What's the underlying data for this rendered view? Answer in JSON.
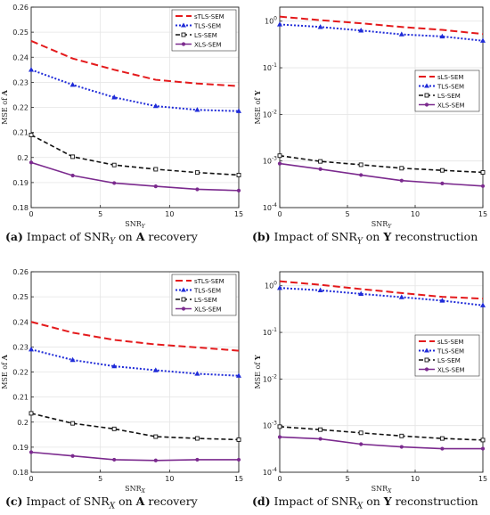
{
  "colors": {
    "sTLS-SEM": "#e41a1c",
    "TLS-SEM": "#1f2bd8",
    "LS-SEM": "#111111",
    "XLS-SEM": "#7b2a8e"
  },
  "captions": [
    {
      "label": "(a)",
      "text": "Impact of SNR",
      "sub": "Y",
      "rest": " on ",
      "bold": "A",
      "tail": " recovery"
    },
    {
      "label": "(b)",
      "text": "Impact of SNR",
      "sub": "Y",
      "rest": " on ",
      "bold": "Y",
      "tail": " reconstruction"
    },
    {
      "label": "(c)",
      "text": "Impact of SNR",
      "sub": "X",
      "rest": " on ",
      "bold": "A",
      "tail": " recovery"
    },
    {
      "label": "(d)",
      "text": "Impact of SNR",
      "sub": "X",
      "rest": " on ",
      "bold": "Y",
      "tail": " reconstruction"
    }
  ],
  "chart_data": [
    {
      "id": "a",
      "type": "line",
      "xlabel": "SNR_Y",
      "ylabel": "MSE of A",
      "x": [
        0,
        3,
        6,
        9,
        12,
        15
      ],
      "xlim": [
        0,
        15
      ],
      "xticks": [
        0,
        5,
        10,
        15
      ],
      "ylim": [
        0.18,
        0.26
      ],
      "yticks": [
        "0.18",
        "0.19",
        "0.2",
        "0.21",
        "0.22",
        "0.23",
        "0.24",
        "0.25",
        "0.26"
      ],
      "log": false,
      "legend": "top-right",
      "series": [
        {
          "name": "sTLS-SEM",
          "values": [
            0.2465,
            0.2395,
            0.235,
            0.231,
            0.2295,
            0.2285
          ]
        },
        {
          "name": "TLS-SEM",
          "values": [
            0.235,
            0.229,
            0.224,
            0.2205,
            0.219,
            0.2185
          ]
        },
        {
          "name": "LS-SEM",
          "values": [
            0.209,
            0.2003,
            0.197,
            0.1953,
            0.194,
            0.193
          ]
        },
        {
          "name": "XLS-SEM",
          "values": [
            0.198,
            0.1928,
            0.1898,
            0.1885,
            0.1873,
            0.1868
          ]
        }
      ]
    },
    {
      "id": "b",
      "type": "line",
      "xlabel": "SNR_Y",
      "ylabel": "MSE of Y",
      "x": [
        0,
        3,
        6,
        9,
        12,
        15
      ],
      "xlim": [
        0,
        15
      ],
      "xticks": [
        0,
        5,
        10,
        15
      ],
      "ylim": [
        0.0001,
        2
      ],
      "yticks": [
        1,
        0.1,
        0.01,
        0.001,
        0.0001
      ],
      "yticklabels": [
        {
          "b": "10",
          "e": "0"
        },
        {
          "b": "10",
          "e": "-1"
        },
        {
          "b": "10",
          "e": "-2"
        },
        {
          "b": "10",
          "e": "-3"
        },
        {
          "b": "10",
          "e": "-4"
        }
      ],
      "log": true,
      "legend": "right",
      "series": [
        {
          "name": "sLS-SEM",
          "values": [
            1.25,
            1.05,
            0.9,
            0.75,
            0.65,
            0.53
          ]
        },
        {
          "name": "TLS-SEM",
          "values": [
            0.85,
            0.75,
            0.63,
            0.52,
            0.47,
            0.38
          ]
        },
        {
          "name": "LS-SEM",
          "values": [
            0.0013,
            0.00098,
            0.00083,
            0.0007,
            0.00063,
            0.00057
          ]
        },
        {
          "name": "XLS-SEM",
          "values": [
            0.00088,
            0.00067,
            0.0005,
            0.00038,
            0.00033,
            0.00029
          ]
        }
      ]
    },
    {
      "id": "c",
      "type": "line",
      "xlabel": "SNR_X",
      "ylabel": "MSE of A",
      "x": [
        0,
        3,
        6,
        9,
        12,
        15
      ],
      "xlim": [
        0,
        15
      ],
      "xticks": [
        0,
        5,
        10,
        15
      ],
      "ylim": [
        0.18,
        0.26
      ],
      "yticks": [
        "0.18",
        "0.19",
        "0.2",
        "0.21",
        "0.22",
        "0.23",
        "0.24",
        "0.25",
        "0.26"
      ],
      "log": false,
      "legend": "top-right",
      "series": [
        {
          "name": "sTLS-SEM",
          "values": [
            0.24,
            0.2357,
            0.2328,
            0.231,
            0.2298,
            0.2285
          ]
        },
        {
          "name": "TLS-SEM",
          "values": [
            0.229,
            0.2248,
            0.2223,
            0.2207,
            0.2193,
            0.2185
          ]
        },
        {
          "name": "LS-SEM",
          "values": [
            0.2035,
            0.1995,
            0.1973,
            0.1942,
            0.1935,
            0.193
          ]
        },
        {
          "name": "XLS-SEM",
          "values": [
            0.188,
            0.1865,
            0.185,
            0.1847,
            0.185,
            0.185
          ]
        }
      ]
    },
    {
      "id": "d",
      "type": "line",
      "xlabel": "SNR_X",
      "ylabel": "MSE of Y",
      "x": [
        0,
        3,
        6,
        9,
        12,
        15
      ],
      "xlim": [
        0,
        15
      ],
      "xticks": [
        0,
        5,
        10,
        15
      ],
      "ylim": [
        0.0001,
        2
      ],
      "yticks": [
        1,
        0.1,
        0.01,
        0.001,
        0.0001
      ],
      "yticklabels": [
        {
          "b": "10",
          "e": "0"
        },
        {
          "b": "10",
          "e": "-1"
        },
        {
          "b": "10",
          "e": "-2"
        },
        {
          "b": "10",
          "e": "-3"
        },
        {
          "b": "10",
          "e": "-4"
        }
      ],
      "log": true,
      "legend": "right",
      "series": [
        {
          "name": "sLS-SEM",
          "values": [
            1.25,
            1.05,
            0.85,
            0.7,
            0.58,
            0.53
          ]
        },
        {
          "name": "TLS-SEM",
          "values": [
            0.9,
            0.8,
            0.67,
            0.57,
            0.48,
            0.38
          ]
        },
        {
          "name": "LS-SEM",
          "values": [
            0.00095,
            0.00082,
            0.0007,
            0.0006,
            0.00053,
            0.00049
          ]
        },
        {
          "name": "XLS-SEM",
          "values": [
            0.00057,
            0.00052,
            0.0004,
            0.00035,
            0.00032,
            0.00032
          ]
        }
      ]
    }
  ]
}
